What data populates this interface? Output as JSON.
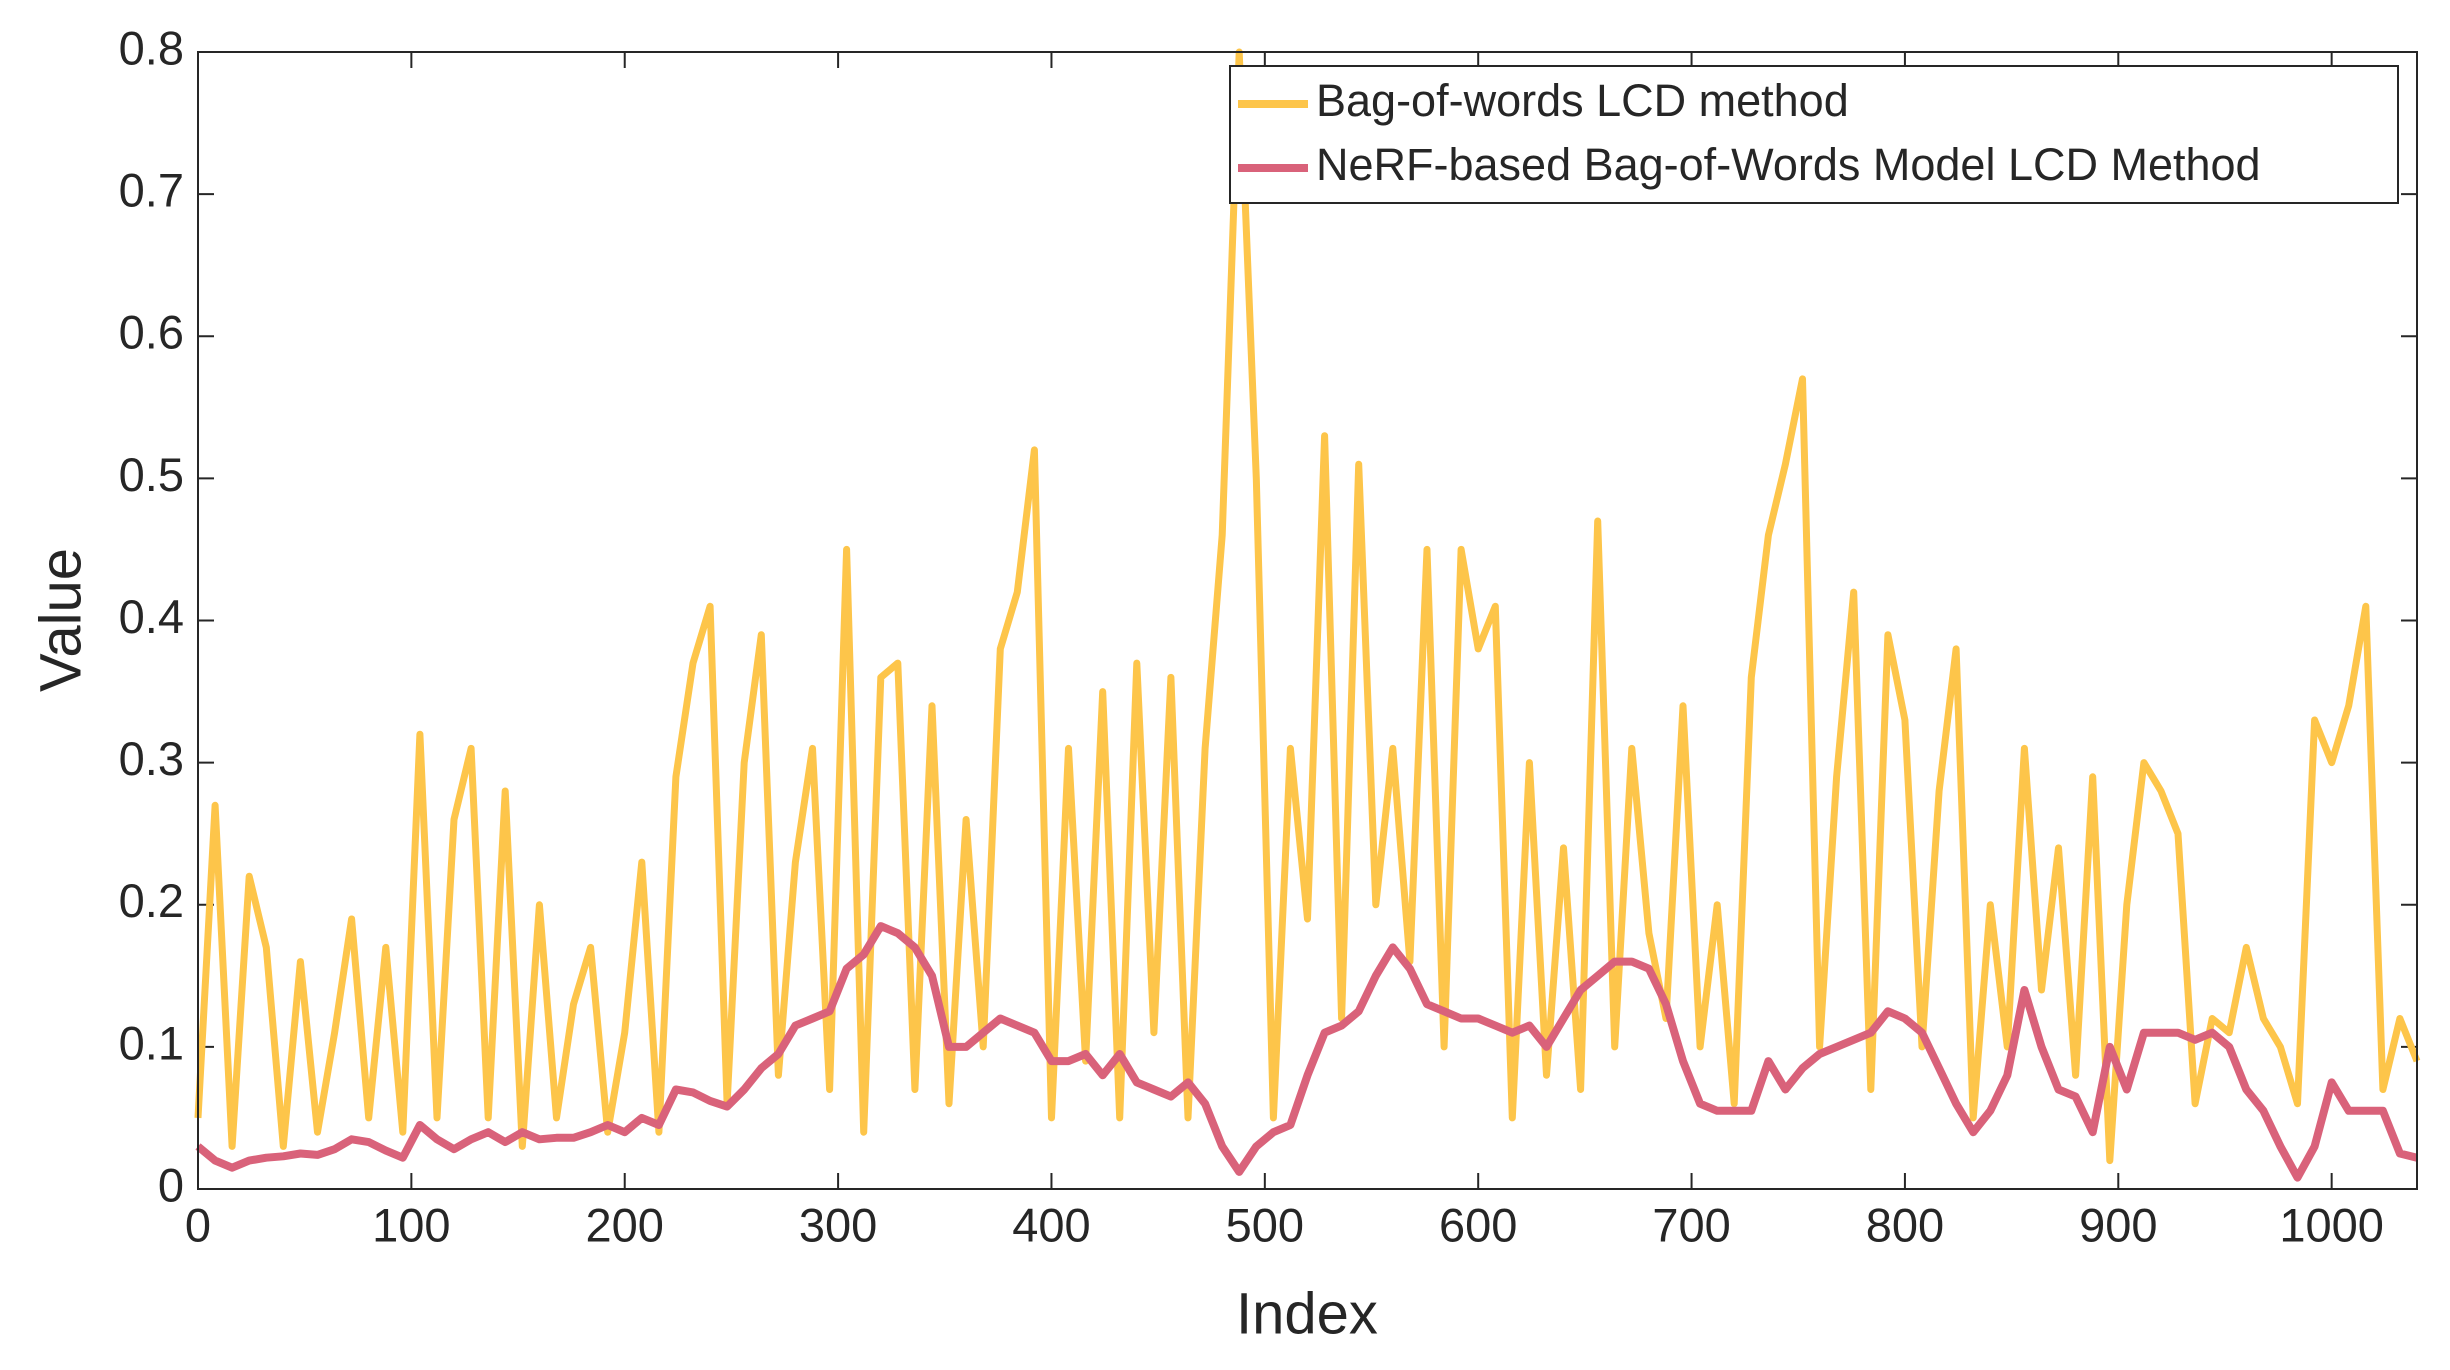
{
  "chart_data": {
    "type": "line",
    "x_label": "Index",
    "y_label": "Value",
    "x": [
      0,
      8,
      16,
      24,
      32,
      40,
      48,
      56,
      64,
      72,
      80,
      88,
      96,
      104,
      112,
      120,
      128,
      136,
      144,
      152,
      160,
      168,
      176,
      184,
      192,
      200,
      208,
      216,
      224,
      232,
      240,
      248,
      256,
      264,
      272,
      280,
      288,
      296,
      304,
      312,
      320,
      328,
      336,
      344,
      352,
      360,
      368,
      376,
      384,
      392,
      400,
      408,
      416,
      424,
      432,
      440,
      448,
      456,
      464,
      472,
      480,
      488,
      496,
      504,
      512,
      520,
      528,
      536,
      544,
      552,
      560,
      568,
      576,
      584,
      592,
      600,
      608,
      616,
      624,
      632,
      640,
      648,
      656,
      664,
      672,
      680,
      688,
      696,
      704,
      712,
      720,
      728,
      736,
      744,
      752,
      760,
      768,
      776,
      784,
      792,
      800,
      808,
      816,
      824,
      832,
      840,
      848,
      856,
      864,
      872,
      880,
      888,
      896,
      904,
      912,
      920,
      928,
      936,
      944,
      952,
      960,
      968,
      976,
      984,
      992,
      1000,
      1008,
      1016,
      1024,
      1032,
      1040
    ],
    "series": [
      {
        "name": "Bag-of-words LCD method",
        "color": "#fdc54a",
        "values": [
          0.05,
          0.27,
          0.03,
          0.22,
          0.17,
          0.03,
          0.16,
          0.04,
          0.11,
          0.19,
          0.05,
          0.17,
          0.04,
          0.32,
          0.05,
          0.26,
          0.31,
          0.05,
          0.28,
          0.03,
          0.2,
          0.05,
          0.13,
          0.17,
          0.04,
          0.11,
          0.23,
          0.04,
          0.29,
          0.37,
          0.41,
          0.06,
          0.3,
          0.39,
          0.08,
          0.23,
          0.31,
          0.07,
          0.45,
          0.04,
          0.36,
          0.37,
          0.07,
          0.34,
          0.06,
          0.26,
          0.1,
          0.38,
          0.42,
          0.52,
          0.05,
          0.31,
          0.09,
          0.35,
          0.05,
          0.37,
          0.11,
          0.36,
          0.05,
          0.31,
          0.46,
          0.8,
          0.5,
          0.05,
          0.31,
          0.19,
          0.53,
          0.12,
          0.51,
          0.2,
          0.31,
          0.16,
          0.45,
          0.1,
          0.45,
          0.38,
          0.41,
          0.05,
          0.3,
          0.08,
          0.24,
          0.07,
          0.47,
          0.1,
          0.31,
          0.18,
          0.12,
          0.34,
          0.1,
          0.2,
          0.06,
          0.36,
          0.46,
          0.51,
          0.57,
          0.1,
          0.29,
          0.42,
          0.07,
          0.39,
          0.33,
          0.1,
          0.28,
          0.38,
          0.05,
          0.2,
          0.1,
          0.31,
          0.14,
          0.24,
          0.08,
          0.29,
          0.02,
          0.2,
          0.3,
          0.28,
          0.25,
          0.06,
          0.12,
          0.11,
          0.17,
          0.12,
          0.1,
          0.06,
          0.33,
          0.3,
          0.34,
          0.41,
          0.07,
          0.12,
          0.09
        ]
      },
      {
        "name": "NeRF-based Bag-of-Words Model LCD Method",
        "color": "#d9627a",
        "values": [
          0.03,
          0.02,
          0.015,
          0.02,
          0.022,
          0.023,
          0.025,
          0.024,
          0.028,
          0.035,
          0.033,
          0.027,
          0.022,
          0.045,
          0.035,
          0.028,
          0.035,
          0.04,
          0.033,
          0.04,
          0.035,
          0.036,
          0.036,
          0.04,
          0.045,
          0.04,
          0.05,
          0.045,
          0.07,
          0.068,
          0.062,
          0.058,
          0.07,
          0.085,
          0.095,
          0.115,
          0.12,
          0.125,
          0.155,
          0.165,
          0.185,
          0.18,
          0.17,
          0.15,
          0.1,
          0.1,
          0.11,
          0.12,
          0.115,
          0.11,
          0.09,
          0.09,
          0.095,
          0.08,
          0.095,
          0.075,
          0.07,
          0.065,
          0.075,
          0.06,
          0.03,
          0.012,
          0.03,
          0.04,
          0.045,
          0.08,
          0.11,
          0.115,
          0.125,
          0.15,
          0.17,
          0.155,
          0.13,
          0.125,
          0.12,
          0.12,
          0.115,
          0.11,
          0.115,
          0.1,
          0.12,
          0.14,
          0.15,
          0.16,
          0.16,
          0.155,
          0.13,
          0.09,
          0.06,
          0.055,
          0.055,
          0.055,
          0.09,
          0.07,
          0.085,
          0.095,
          0.1,
          0.105,
          0.11,
          0.125,
          0.12,
          0.11,
          0.085,
          0.06,
          0.04,
          0.055,
          0.08,
          0.14,
          0.1,
          0.07,
          0.065,
          0.04,
          0.1,
          0.07,
          0.11,
          0.11,
          0.11,
          0.105,
          0.11,
          0.1,
          0.07,
          0.055,
          0.03,
          0.008,
          0.03,
          0.075,
          0.055,
          0.055,
          0.055,
          0.025,
          0.022
        ]
      }
    ],
    "xlim": [
      0,
      1040
    ],
    "xticks": [
      0,
      100,
      200,
      300,
      400,
      500,
      600,
      700,
      800,
      900,
      1000
    ],
    "ylim": [
      0,
      0.8
    ],
    "yticks": [
      0,
      0.1,
      0.2,
      0.3,
      0.4,
      0.5,
      0.6,
      0.7,
      0.8
    ],
    "legend": "upper right"
  }
}
